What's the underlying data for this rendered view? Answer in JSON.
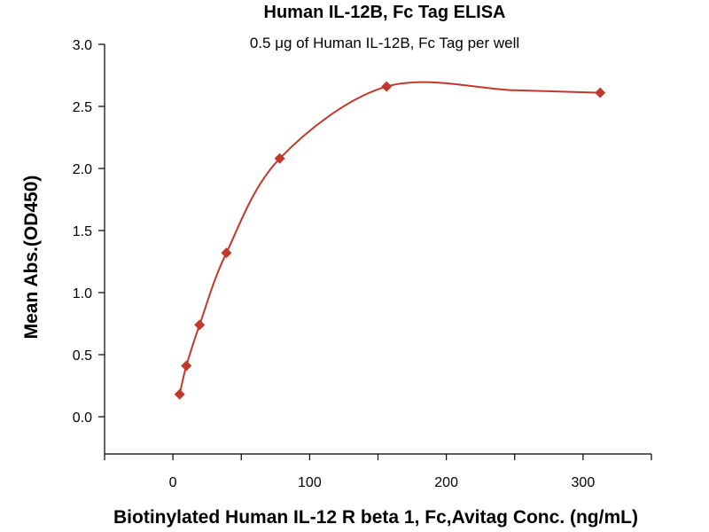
{
  "chart_data": {
    "type": "scatter",
    "title": "Human IL-12B, Fc Tag ELISA",
    "subtitle": "0.5 μg of Human IL-12B, Fc Tag per well",
    "xlabel": "Biotinylated Human IL-12 R beta 1, Fc,Avitag Conc. (ng/mL)",
    "ylabel": "Mean Abs.(OD450)",
    "xlim": [
      -50,
      350
    ],
    "ylim": [
      -0.3,
      3.0
    ],
    "xticks": [
      0,
      100,
      200,
      300
    ],
    "yticks": [
      0.0,
      0.5,
      1.0,
      1.5,
      2.0,
      2.5,
      3.0
    ],
    "xtick_labels": [
      "0",
      "100",
      "200",
      "300"
    ],
    "ytick_labels": [
      "0.0",
      "0.5",
      "1.0",
      "1.5",
      "2.0",
      "2.5",
      "3.0"
    ],
    "grid": false,
    "legend": "none",
    "series": [
      {
        "color": "#C0392B",
        "marker": "diamond",
        "x": [
          4.9,
          9.8,
          19.5,
          39.1,
          78.1,
          156.3,
          312.5
        ],
        "y": [
          0.18,
          0.41,
          0.74,
          1.32,
          2.08,
          2.66,
          2.61
        ],
        "fit_curve": true
      }
    ]
  }
}
